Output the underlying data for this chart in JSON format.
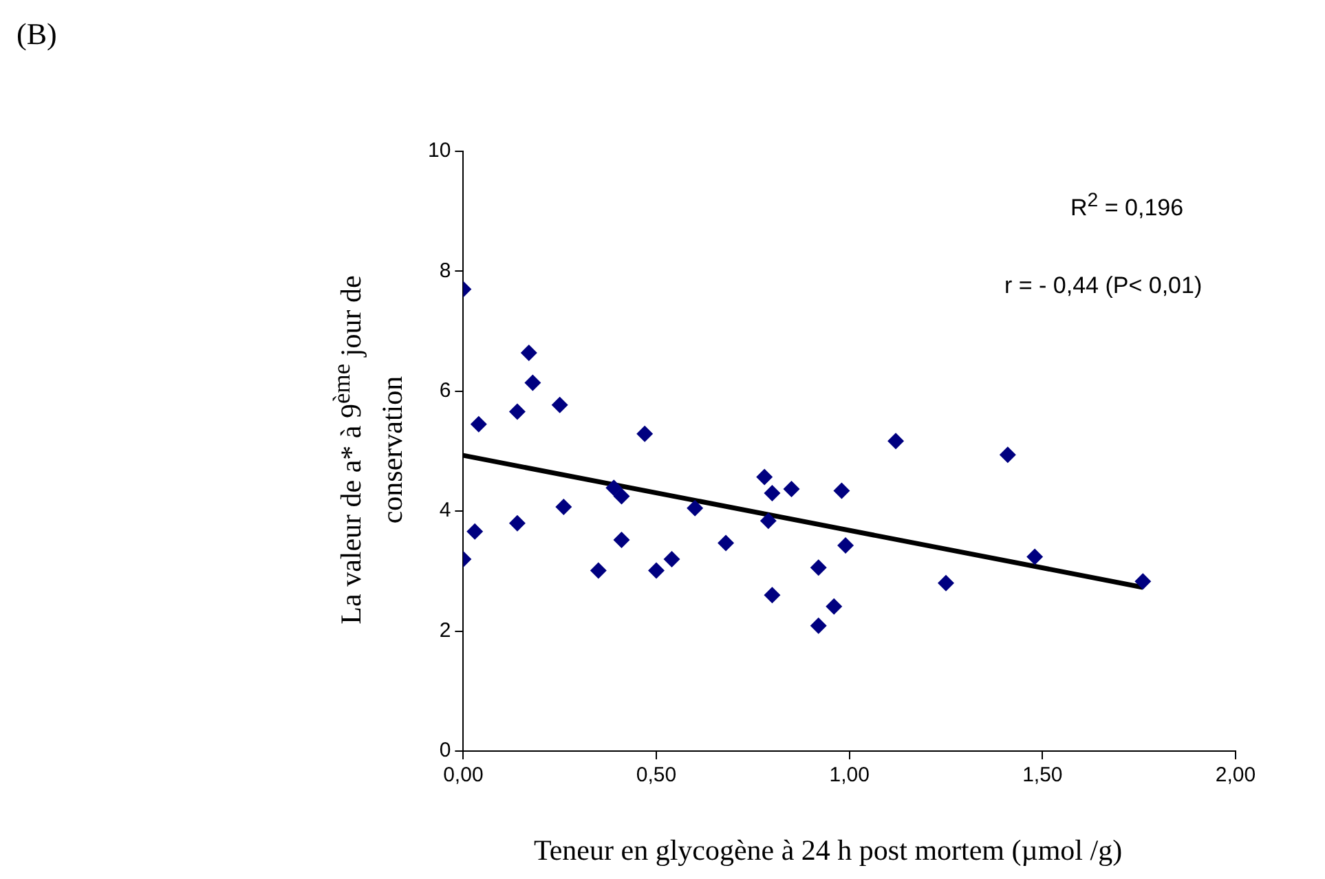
{
  "chart_data": {
    "type": "scatter",
    "xlabel": "Teneur en glycogène à 24 h post mortem (µmol /g)",
    "ylabel": "La valeur de a* à 9$^{ème}$ jour de conservation",
    "annotations": [
      "(B)",
      "R$^{2}$ = 0,196",
      "r = - 0,44 (P< 0,01)"
    ],
    "series": [
      {
        "type": "scatter",
        "color": "#000080",
        "marker": "diamond",
        "x": [
          0,
          0,
          0.03,
          0.04,
          0.14,
          0.14,
          0.17,
          0.18,
          0.25,
          0.26,
          0.35,
          0.39,
          0.41,
          0.41,
          0.47,
          0.5,
          0.54,
          0.6,
          0.68,
          0.78,
          0.79,
          0.8,
          0.8,
          0.85,
          0.92,
          0.92,
          0.96,
          0.98,
          0.99,
          1.12,
          1.25,
          1.41,
          1.48,
          1.76
        ],
        "values": [
          7.7,
          3.2,
          3.66,
          5.45,
          5.66,
          3.8,
          6.64,
          6.14,
          5.77,
          4.07,
          3.01,
          4.39,
          4.25,
          3.52,
          5.29,
          3.01,
          3.2,
          4.05,
          3.47,
          4.57,
          3.84,
          4.3,
          2.6,
          4.37,
          3.06,
          2.09,
          2.41,
          4.34,
          3.43,
          5.17,
          2.8,
          4.94,
          3.24,
          2.83
        ]
      },
      {
        "type": "line",
        "color": "#000000",
        "marker": "none",
        "line_style": "solid",
        "x": [
          0,
          1.76
        ],
        "values": [
          4.93,
          2.73
        ]
      }
    ],
    "xlim": [
      0,
      2
    ],
    "xticks": [
      {
        "value": 0,
        "label": "0,00"
      },
      {
        "value": 0.5,
        "label": "0,50"
      },
      {
        "value": 1,
        "label": "1,00"
      },
      {
        "value": 1.5,
        "label": "1,50"
      },
      {
        "value": 2,
        "label": "2,00"
      }
    ],
    "ylim": [
      0,
      10
    ],
    "yticks": [
      0,
      2,
      4,
      6,
      8,
      10
    ],
    "grid": false,
    "legend": false
  }
}
